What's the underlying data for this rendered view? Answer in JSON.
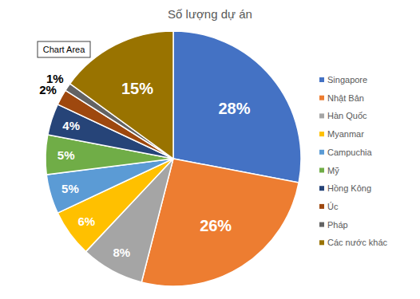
{
  "chart_data": {
    "type": "pie",
    "title": "Số lượng dự án",
    "categories": [
      "Singapore",
      "Nhật Bản",
      "Hàn Quốc",
      "Myanmar",
      "Campuchia",
      "Mỹ",
      "Hồng Kông",
      "Úc",
      "Pháp",
      "Các nước khác"
    ],
    "values": [
      28,
      26,
      8,
      6,
      5,
      5,
      4,
      2,
      1,
      15
    ],
    "value_labels": [
      "28%",
      "26%",
      "8%",
      "6%",
      "5%",
      "5%",
      "4%",
      "2%",
      "1%",
      "15%"
    ],
    "colors": [
      "#4472c4",
      "#ed7d31",
      "#a5a5a5",
      "#ffc000",
      "#5b9bd5",
      "#70ad47",
      "#264478",
      "#9e480e",
      "#636363",
      "#997300"
    ],
    "data_labels": true,
    "legend": "right",
    "annotations": [
      "Chart Area"
    ]
  }
}
